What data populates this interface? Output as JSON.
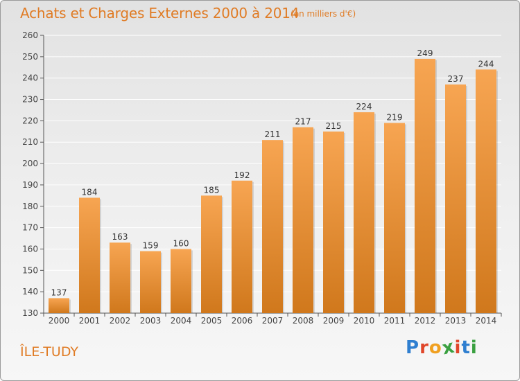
{
  "header": {
    "title": "Achats et Charges Externes 2000 à 2014",
    "subtitle": "(en milliers d'€)"
  },
  "footer": {
    "commune": "ÎLE-TUDY"
  },
  "logo": {
    "text": "Proxiti",
    "letter_colors": [
      "#2f7fd0",
      "#e0462a",
      "#f0a020",
      "#3aa040",
      "#e0462a",
      "#2f7fd0",
      "#3aa040"
    ]
  },
  "colors": {
    "bar_light": "#f7a552",
    "bar_dark": "#d0781c",
    "grid": "#ffffff",
    "axis_text": "#444444",
    "title": "#e07b24"
  },
  "chart_data": {
    "type": "bar",
    "categories": [
      "2000",
      "2001",
      "2002",
      "2003",
      "2004",
      "2005",
      "2006",
      "2007",
      "2008",
      "2009",
      "2010",
      "2011",
      "2012",
      "2013",
      "2014"
    ],
    "values": [
      137,
      184,
      163,
      159,
      160,
      185,
      192,
      211,
      217,
      215,
      224,
      219,
      249,
      237,
      244
    ],
    "title": "Achats et Charges Externes 2000 à 2014",
    "xlabel": "",
    "ylabel": "",
    "ylim": [
      130,
      260
    ],
    "yticks": [
      130,
      140,
      150,
      160,
      170,
      180,
      190,
      200,
      210,
      220,
      230,
      240,
      250,
      260
    ],
    "grid": true,
    "data_labels": true
  }
}
